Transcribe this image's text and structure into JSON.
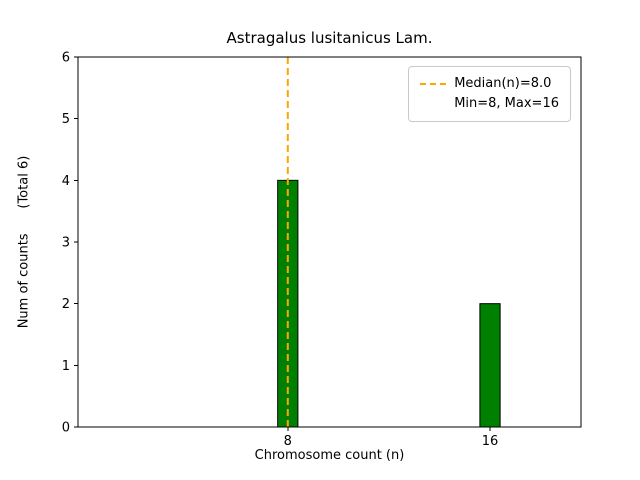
{
  "chart_data": {
    "type": "bar",
    "title": "Astragalus lusitanicus Lam.",
    "xlabel": "Chromosome count (n)",
    "ylabel": "Num of counts      (Total 6)",
    "categories": [
      "8",
      "16"
    ],
    "x_values": [
      8,
      16
    ],
    "values": [
      4,
      2
    ],
    "ylim": [
      0,
      6
    ],
    "xlim": [
      -0.3,
      19.6
    ],
    "y_ticks": [
      0,
      1,
      2,
      3,
      4,
      5,
      6
    ],
    "bar_width": 0.8,
    "grid": false,
    "bar_color": "#008000",
    "bar_edge_color": "#000000",
    "median_line": {
      "x": 8,
      "color": "#FFA500",
      "style": "dashed"
    },
    "legend": {
      "position": "upper right",
      "entries": [
        "Median(n)=8.0",
        "Min=8, Max=16"
      ]
    }
  }
}
